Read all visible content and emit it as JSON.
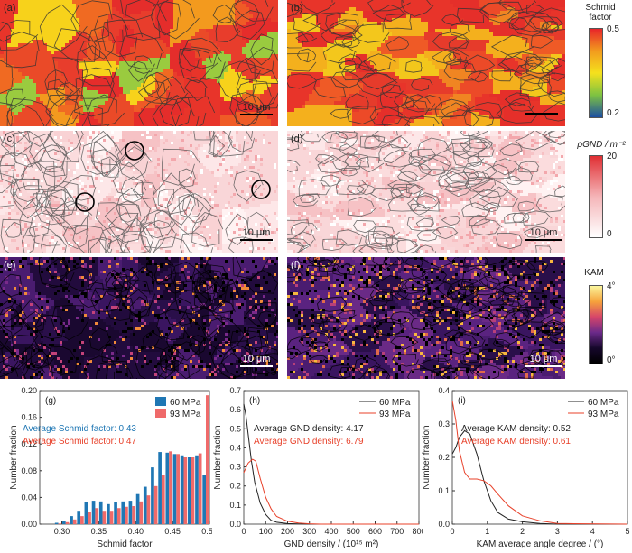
{
  "panels": {
    "a": {
      "label": "(a)",
      "scale": "10 μm"
    },
    "b": {
      "label": "(b)"
    },
    "c": {
      "label": "(c)",
      "scale": "10 μm"
    },
    "d": {
      "label": "(d)",
      "scale": "10 μm"
    },
    "e": {
      "label": "(e)",
      "scale": "10 μm"
    },
    "f": {
      "label": "(f)",
      "scale": "10 μm"
    }
  },
  "colorbars": {
    "schmid": {
      "title_line1": "Schmid",
      "title_line2": "factor",
      "max": "0.5",
      "min": "0.2",
      "colors": [
        "#e8242a",
        "#f29b1e",
        "#f5e11d",
        "#7dc242",
        "#1c4fa1"
      ]
    },
    "gnd": {
      "title": "ρGND / m⁻²",
      "max": "20",
      "min": "0",
      "colors": [
        "#e02f33",
        "#f5b5b8",
        "#ffffff"
      ]
    },
    "kam": {
      "title": "KAM",
      "max": "4°",
      "min": "0°",
      "colors": [
        "#fbf79e",
        "#f6a33b",
        "#d6456a",
        "#6b2a8a",
        "#16072b",
        "#000000"
      ]
    }
  },
  "chart_data": [
    {
      "type": "bar",
      "panel_label": "(g)",
      "xlabel": "Schmid factor",
      "ylabel": "Number fraction",
      "xlim": [
        0.27,
        0.5
      ],
      "ylim": [
        0,
        0.2
      ],
      "xticks": [
        "0.30",
        "0.35",
        "0.40",
        "0.45",
        "0.50"
      ],
      "yticks": [
        "0.00",
        "0.04",
        "0.08",
        "0.12",
        "0.16",
        "0.20"
      ],
      "annotations": [
        "Average Schmid factor: 0.43",
        "Average Schmid factor: 0.47"
      ],
      "categories": [
        0.295,
        0.305,
        0.315,
        0.325,
        0.335,
        0.345,
        0.355,
        0.365,
        0.375,
        0.385,
        0.395,
        0.405,
        0.415,
        0.425,
        0.435,
        0.445,
        0.455,
        0.465,
        0.475,
        0.485,
        0.495
      ],
      "series": [
        {
          "name": "60 MPa",
          "color": "#1f77b4",
          "values": [
            0.002,
            0.004,
            0.012,
            0.02,
            0.033,
            0.035,
            0.034,
            0.03,
            0.033,
            0.034,
            0.035,
            0.045,
            0.056,
            0.085,
            0.108,
            0.107,
            0.105,
            0.103,
            0.1,
            0.103,
            0.073
          ]
        },
        {
          "name": "93 MPa",
          "color": "#ef6a6a",
          "values": [
            0.001,
            0.003,
            0.007,
            0.012,
            0.018,
            0.024,
            0.02,
            0.02,
            0.024,
            0.026,
            0.027,
            0.034,
            0.043,
            0.057,
            0.073,
            0.109,
            0.105,
            0.1,
            0.1,
            0.106,
            0.193
          ]
        }
      ]
    },
    {
      "type": "line",
      "panel_label": "(h)",
      "xlabel": "GND density / (10¹⁵ m²)",
      "ylabel": "Number fraction",
      "xlim": [
        0,
        800
      ],
      "ylim": [
        0,
        0.7
      ],
      "xticks": [
        "0",
        "100",
        "200",
        "300",
        "400",
        "500",
        "600",
        "700",
        "800"
      ],
      "yticks": [
        "0.0",
        "0.1",
        "0.2",
        "0.3",
        "0.4",
        "0.5",
        "0.6",
        "0.7"
      ],
      "annotations": [
        "Average GND density: 4.17",
        "Average GND density: 6.79"
      ],
      "series": [
        {
          "name": "60 MPa",
          "color": "#222222",
          "x": [
            0,
            10,
            20,
            35,
            50,
            75,
            100,
            125,
            150,
            200,
            250,
            300,
            800
          ],
          "y": [
            0.63,
            0.57,
            0.47,
            0.33,
            0.22,
            0.11,
            0.05,
            0.02,
            0.01,
            0.003,
            0.001,
            0.0,
            0.0
          ]
        },
        {
          "name": "93 MPa",
          "color": "#e8412a",
          "x": [
            0,
            20,
            40,
            55,
            75,
            100,
            125,
            150,
            200,
            250,
            300,
            350,
            800
          ],
          "y": [
            0.27,
            0.32,
            0.34,
            0.33,
            0.24,
            0.14,
            0.08,
            0.04,
            0.015,
            0.006,
            0.002,
            0.0,
            0.0
          ]
        }
      ]
    },
    {
      "type": "line",
      "panel_label": "(i)",
      "xlabel": "KAM average angle degree / (°)",
      "ylabel": "Number fraction",
      "xlim": [
        0,
        5
      ],
      "ylim": [
        0,
        0.4
      ],
      "xticks": [
        "0",
        "1",
        "2",
        "3",
        "4",
        "5"
      ],
      "yticks": [
        "0.0",
        "0.1",
        "0.2",
        "0.3",
        "0.4"
      ],
      "annotations": [
        "Average KAM density: 0.52",
        "Average KAM density: 0.61"
      ],
      "series": [
        {
          "name": "60 MPa",
          "color": "#222222",
          "x": [
            0,
            0.1,
            0.2,
            0.35,
            0.5,
            0.7,
            0.9,
            1.1,
            1.3,
            1.6,
            2.0,
            2.5,
            3.0,
            5.0
          ],
          "y": [
            0.21,
            0.23,
            0.26,
            0.28,
            0.27,
            0.21,
            0.13,
            0.07,
            0.035,
            0.015,
            0.007,
            0.002,
            0.0,
            0.0
          ]
        },
        {
          "name": "93 MPa",
          "color": "#e8412a",
          "x": [
            0,
            0.1,
            0.2,
            0.35,
            0.5,
            0.7,
            0.9,
            1.1,
            1.3,
            1.6,
            2.0,
            2.5,
            3.0,
            5.0
          ],
          "y": [
            0.37,
            0.31,
            0.22,
            0.155,
            0.135,
            0.135,
            0.13,
            0.115,
            0.09,
            0.055,
            0.025,
            0.01,
            0.002,
            0.0
          ]
        }
      ]
    }
  ]
}
